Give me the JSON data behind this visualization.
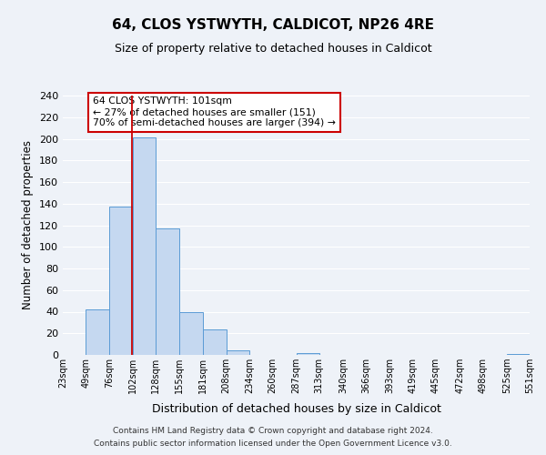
{
  "title": "64, CLOS YSTWYTH, CALDICOT, NP26 4RE",
  "subtitle": "Size of property relative to detached houses in Caldicot",
  "xlabel": "Distribution of detached houses by size in Caldicot",
  "ylabel": "Number of detached properties",
  "bar_edges": [
    23,
    49,
    76,
    102,
    128,
    155,
    181,
    208,
    234,
    260,
    287,
    313,
    340,
    366,
    393,
    419,
    445,
    472,
    498,
    525,
    551
  ],
  "bar_heights": [
    0,
    42,
    137,
    201,
    117,
    40,
    24,
    4,
    0,
    0,
    2,
    0,
    0,
    0,
    0,
    0,
    0,
    0,
    0,
    1
  ],
  "bar_color": "#c5d8f0",
  "bar_edge_color": "#5b9bd5",
  "property_line_x": 101,
  "property_line_color": "#cc0000",
  "annotation_title": "64 CLOS YSTWYTH: 101sqm",
  "annotation_line1": "← 27% of detached houses are smaller (151)",
  "annotation_line2": "70% of semi-detached houses are larger (394) →",
  "annotation_box_color": "#cc0000",
  "ylim": [
    0,
    240
  ],
  "yticks": [
    0,
    20,
    40,
    60,
    80,
    100,
    120,
    140,
    160,
    180,
    200,
    220,
    240
  ],
  "tick_labels": [
    "23sqm",
    "49sqm",
    "76sqm",
    "102sqm",
    "128sqm",
    "155sqm",
    "181sqm",
    "208sqm",
    "234sqm",
    "260sqm",
    "287sqm",
    "313sqm",
    "340sqm",
    "366sqm",
    "393sqm",
    "419sqm",
    "445sqm",
    "472sqm",
    "498sqm",
    "525sqm",
    "551sqm"
  ],
  "footer_line1": "Contains HM Land Registry data © Crown copyright and database right 2024.",
  "footer_line2": "Contains public sector information licensed under the Open Government Licence v3.0.",
  "bg_color": "#eef2f8",
  "grid_color": "#ffffff"
}
